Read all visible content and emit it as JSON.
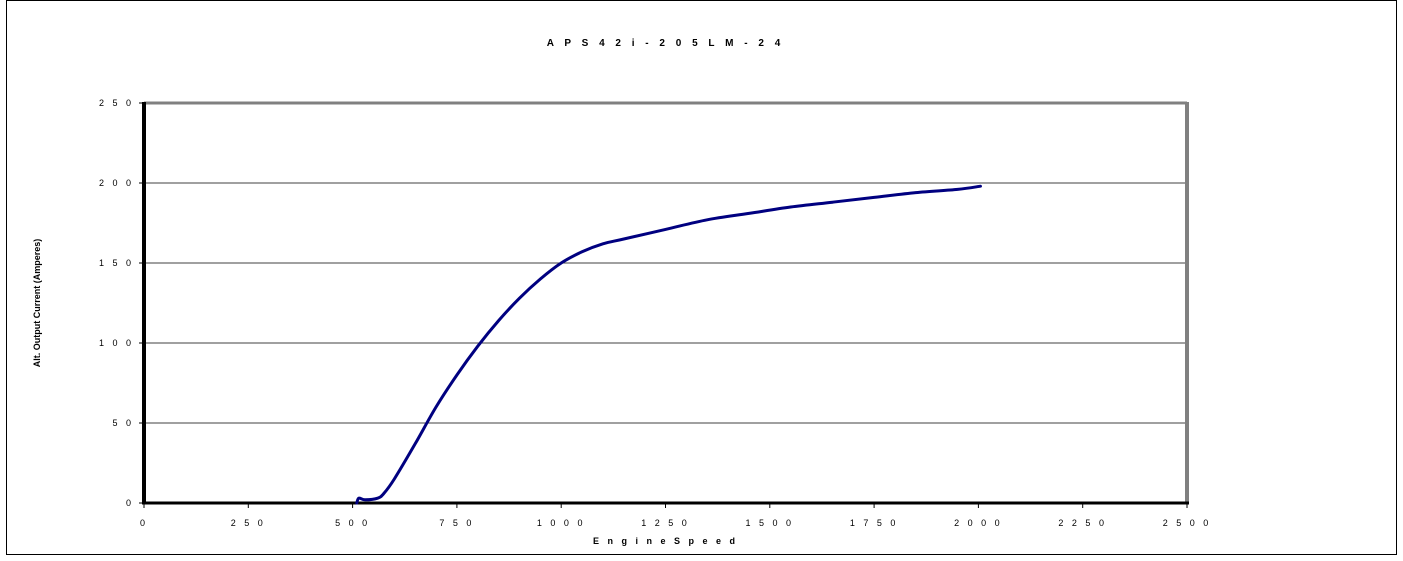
{
  "chart_data": {
    "type": "line",
    "title": "A P S 4 2 i - 2 0 5 L M - 2 4",
    "xlabel": "E n g i n e S p e e d",
    "ylabel": "Alt. Output Current (Amperes)",
    "xlim": [
      0,
      2500
    ],
    "ylim": [
      0,
      250
    ],
    "x_ticks": [
      0,
      250,
      500,
      750,
      1000,
      1250,
      1500,
      1750,
      2000,
      2250,
      2500
    ],
    "y_ticks": [
      0,
      50,
      100,
      150,
      200,
      250
    ],
    "x_tick_labels": [
      "0",
      "2 5 0",
      "5 0 0",
      "7 5 0",
      "1 0 0 0",
      "1 2 5 0",
      "1 5 0 0",
      "1 7 5 0",
      "2 0 0 0",
      "2 2 5 0",
      "2 5 0 0"
    ],
    "y_tick_labels": [
      "0",
      "5 0",
      "1 0 0",
      "1 5 0",
      "2 0 0",
      "2 5 0"
    ],
    "grid": {
      "horizontal": true,
      "vertical": false
    },
    "legend": "none",
    "series": [
      {
        "color": "#000080",
        "x": [
          510,
          515,
          530,
          560,
          575,
          600,
          650,
          700,
          750,
          800,
          850,
          900,
          950,
          1000,
          1050,
          1100,
          1150,
          1250,
          1350,
          1450,
          1550,
          1650,
          1750,
          1850,
          1950,
          2005
        ],
        "y": [
          0,
          3,
          2,
          3,
          6,
          15,
          37,
          60,
          80,
          98,
          114,
          128,
          140,
          150,
          157,
          162,
          165,
          171,
          177,
          181,
          185,
          188,
          191,
          194,
          196,
          198
        ]
      }
    ]
  }
}
